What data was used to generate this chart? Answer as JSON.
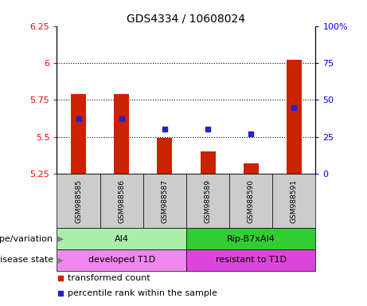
{
  "title": "GDS4334 / 10608024",
  "samples": [
    "GSM988585",
    "GSM988586",
    "GSM988587",
    "GSM988589",
    "GSM988590",
    "GSM988591"
  ],
  "bar_values": [
    5.79,
    5.79,
    5.49,
    5.4,
    5.32,
    6.02
  ],
  "bar_base": 5.25,
  "percentile_values": [
    37,
    37,
    30,
    30,
    27,
    45
  ],
  "ylim_left": [
    5.25,
    6.25
  ],
  "ylim_right": [
    0,
    100
  ],
  "yticks_left": [
    5.25,
    5.5,
    5.75,
    6.0,
    6.25
  ],
  "ytick_labels_left": [
    "5.25",
    "5.5",
    "5.75",
    "6",
    "6.25"
  ],
  "yticks_right": [
    0,
    25,
    50,
    75,
    100
  ],
  "ytick_labels_right": [
    "0",
    "25",
    "50",
    "75",
    "100%"
  ],
  "hlines": [
    5.5,
    5.75,
    6.0
  ],
  "bar_color": "#cc2200",
  "blue_color": "#2222cc",
  "genotype_groups": [
    {
      "label": "AI4",
      "start": 0,
      "end": 3,
      "color": "#aaeeaa"
    },
    {
      "label": "Rip-B7xAI4",
      "start": 3,
      "end": 6,
      "color": "#33cc33"
    }
  ],
  "disease_groups": [
    {
      "label": "developed T1D",
      "start": 0,
      "end": 3,
      "color": "#ee88ee"
    },
    {
      "label": "resistant to T1D",
      "start": 3,
      "end": 6,
      "color": "#dd44dd"
    }
  ],
  "genotype_label": "genotype/variation",
  "disease_label": "disease state",
  "legend_red": "transformed count",
  "legend_blue": "percentile rank within the sample",
  "sample_col_color": "#cccccc",
  "label_fontsize": 8,
  "tick_fontsize": 8,
  "title_fontsize": 10
}
